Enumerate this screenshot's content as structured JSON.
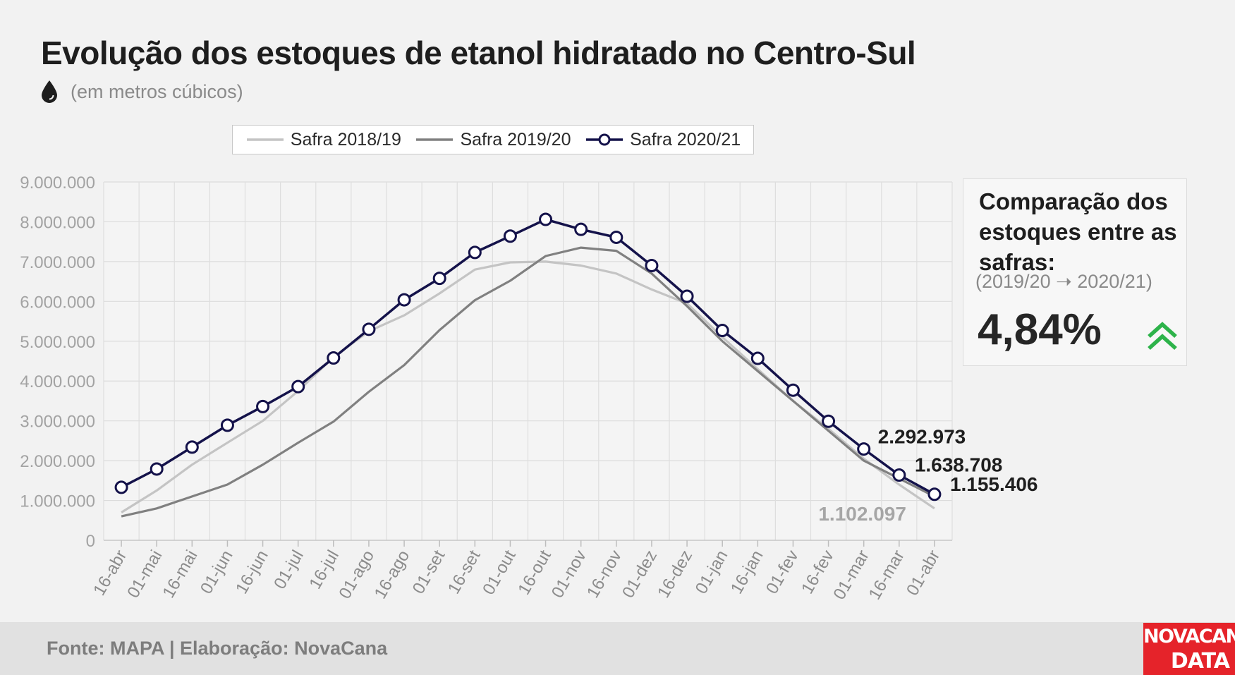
{
  "header": {
    "title": "Evolução dos estoques de etanol hidratado no Centro-Sul",
    "subtitle": "(em metros cúbicos)",
    "subtitle_icon": "water-drop-icon"
  },
  "comparison": {
    "title": "Comparação dos estoques entre as safras:",
    "period": "(2019/20 ➝ 2020/21)",
    "value": "4,84%",
    "trend_icon": "double-chevron-up-icon",
    "trend_color": "#2db34a"
  },
  "footer": {
    "source": "Fonte: MAPA  | Elaboração: NovaCana",
    "brand_line1": "NOVACANA",
    "brand_line2": "DATA",
    "brand_color": "#e5232a"
  },
  "chart_data": {
    "type": "line",
    "x": [
      "16-abr",
      "01-mai",
      "16-mai",
      "01-jun",
      "16-jun",
      "01-jul",
      "16-jul",
      "01-ago",
      "16-ago",
      "01-set",
      "16-set",
      "01-out",
      "16-out",
      "01-nov",
      "16-nov",
      "01-dez",
      "16-dez",
      "01-jan",
      "16-jan",
      "01-fev",
      "16-fev",
      "01-mar",
      "16-mar",
      "01-abr"
    ],
    "y_ticks": [
      "0",
      "1.000.000",
      "2.000.000",
      "3.000.000",
      "4.000.000",
      "5.000.000",
      "6.000.000",
      "7.000.000",
      "8.000.000",
      "9.000.000"
    ],
    "ylim": [
      0,
      9000000
    ],
    "grid": true,
    "legend_position": "top",
    "series": [
      {
        "name": "Safra 2018/19",
        "color": "#c4c4c4",
        "markers": false,
        "values": [
          700000,
          1250000,
          1900000,
          2450000,
          3000000,
          3750000,
          4600000,
          5250000,
          5650000,
          6200000,
          6800000,
          6980000,
          7000000,
          6900000,
          6700000,
          6300000,
          5950000,
          5100000,
          4300000,
          3500000,
          2800000,
          2050000,
          1400000,
          800000
        ]
      },
      {
        "name": "Safra 2019/20",
        "color": "#808080",
        "markers": false,
        "values": [
          600000,
          800000,
          1100000,
          1400000,
          1900000,
          2450000,
          2980000,
          3730000,
          4400000,
          5280000,
          6030000,
          6520000,
          7140000,
          7350000,
          7270000,
          6700000,
          5880000,
          5000000,
          4250000,
          3500000,
          2750000,
          2000000,
          1550000,
          1102097
        ]
      },
      {
        "name": "Safra 2020/21",
        "color": "#14124a",
        "markers": true,
        "values": [
          1330000,
          1790000,
          2340000,
          2890000,
          3360000,
          3860000,
          4580000,
          5300000,
          6040000,
          6580000,
          7230000,
          7640000,
          8060000,
          7810000,
          7610000,
          6900000,
          6130000,
          5270000,
          4570000,
          3770000,
          2990000,
          2292973,
          1638708,
          1155406
        ]
      }
    ],
    "annotations": [
      {
        "text": "2.292.973",
        "series": 2,
        "index": 21
      },
      {
        "text": "1.638.708",
        "series": 2,
        "index": 22
      },
      {
        "text": "1.155.406",
        "series": 2,
        "index": 23
      },
      {
        "text": "1.102.097",
        "series": 1,
        "index": 23
      }
    ]
  }
}
